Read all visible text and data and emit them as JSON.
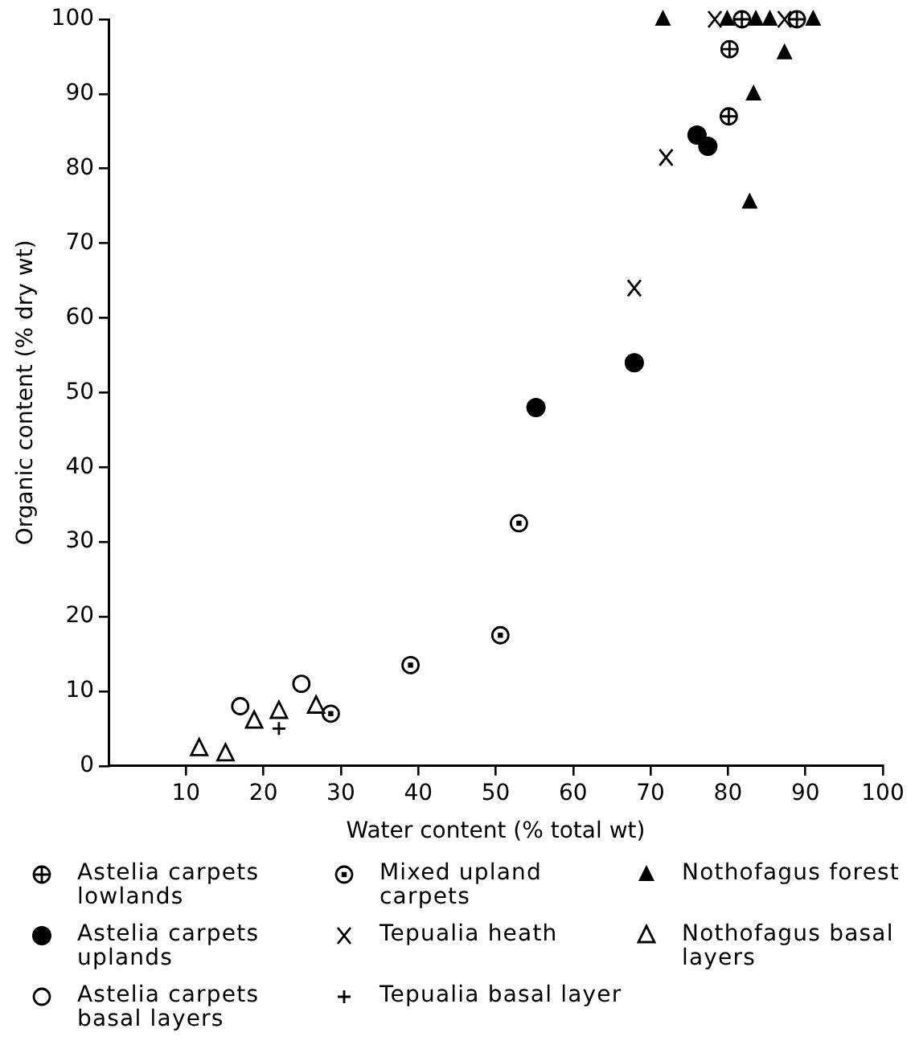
{
  "chart_data": {
    "type": "scatter",
    "xlabel": "Water content (% total wt)",
    "ylabel": "Organic content (% dry wt)",
    "xlim": [
      0,
      100
    ],
    "ylim": [
      0,
      100
    ],
    "xticks": [
      10,
      20,
      30,
      40,
      50,
      60,
      70,
      80,
      90,
      100
    ],
    "yticks": [
      0,
      10,
      20,
      30,
      40,
      50,
      60,
      70,
      80,
      90,
      100
    ],
    "grid": false,
    "legend": "bottom",
    "series": [
      {
        "name": "Astelia carpets lowlands",
        "color": "#000000",
        "x": [
          81.8,
          88.9,
          80.2,
          80.1
        ],
        "values": [
          100,
          100,
          96,
          87
        ]
      },
      {
        "name": "Mixed upland carpets",
        "color": "#000000",
        "marker": "circle-dot",
        "x": [
          28.7,
          39,
          50.6,
          53
        ],
        "values": [
          7,
          13.5,
          17.5,
          32.5
        ]
      },
      {
        "name": "Nothofagus forest",
        "color": "#000000",
        "marker": "triangle",
        "x": [
          71.6,
          79.9,
          83.6,
          85.4,
          91,
          87.3,
          83.3,
          82.8
        ],
        "values": [
          100,
          100,
          100,
          100,
          100,
          95.5,
          90,
          75.5
        ]
      },
      {
        "name": "Astelia carpets uplands",
        "color": "#000000",
        "marker": "circle",
        "x": [
          55.2,
          67.9,
          76,
          77.4
        ],
        "values": [
          48,
          54,
          84.5,
          83
        ]
      },
      {
        "name": "Tepualia heath",
        "color": "#000000",
        "marker": "x",
        "x": [
          67.9,
          72,
          78.3,
          87.3
        ],
        "values": [
          64,
          81.5,
          100,
          100
        ]
      },
      {
        "name": "Nothofagus basal layers",
        "color": "#000000",
        "marker": "triangle-open",
        "x": [
          11.7,
          15.1,
          18.8,
          22,
          26.8
        ],
        "values": [
          2.3,
          1.6,
          6,
          7.3,
          8
        ]
      },
      {
        "name": "Astelia carpets basal layers",
        "color": "#000000",
        "marker": "circle-open",
        "x": [
          17,
          24.9
        ],
        "values": [
          8,
          11
        ]
      },
      {
        "name": "Tepualia basal layer",
        "color": "#000000",
        "marker": "cross",
        "x": [
          22
        ],
        "values": [
          5
        ]
      }
    ]
  }
}
